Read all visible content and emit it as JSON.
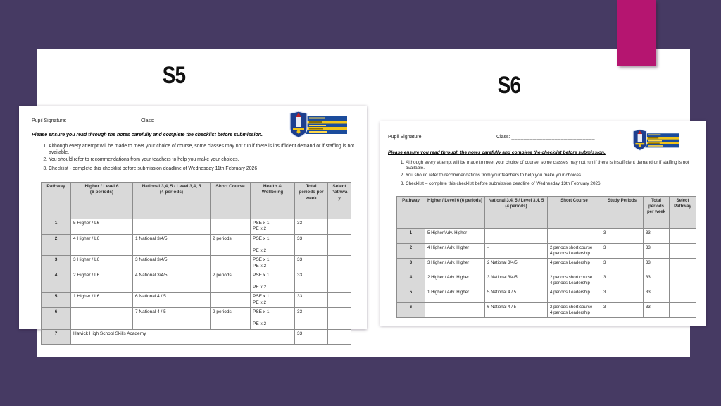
{
  "slide": {
    "background_color": "#463a63",
    "accent_color": "#b51570",
    "s5_title": "S5",
    "s6_title": "S6"
  },
  "s5_doc": {
    "pupil_signature_label": "Pupil Signature:",
    "class_label": "Class:",
    "class_line": "_____________________________",
    "instruction": "Please ensure you read through the notes carefully and complete the checklist before submission.",
    "notes": [
      "Although every attempt will be made to meet your choice of course, some classes may not run if there is insufficient demand or if staffing is not available.",
      "You should refer to recommendations from your teachers to help you make your choices.",
      "Checklist -  complete this checklist before submission deadline of Wednesday 11th February 2026"
    ],
    "table": {
      "headers": [
        [
          "Pathway"
        ],
        [
          "Higher / Level 6",
          "(6 periods)"
        ],
        [
          "National 3,4, 5 / Level 3,4, 5",
          "(4 periods)"
        ],
        [
          "Short Course"
        ],
        [
          "Health & Wellbeing"
        ],
        [
          "Total periods per week"
        ],
        [
          "Select Pathway"
        ]
      ],
      "rows": [
        [
          "1",
          "5 Higher / L6",
          "-",
          "",
          [
            "PSE x 1",
            "PE x 2"
          ],
          "33",
          ""
        ],
        [
          "2",
          "4 Higher / L6",
          "1 National 3/4/5",
          "2 periods",
          [
            "PSE x 1",
            "",
            "PE x 2"
          ],
          "33",
          ""
        ],
        [
          "3",
          "3 Higher / L6",
          "3 National 3/4/5",
          "",
          [
            "PSE x 1",
            "PE x 2"
          ],
          "33",
          ""
        ],
        [
          "4",
          "2 Higher / L6",
          "4 National 3/4/5",
          "2 periods",
          [
            "PSE x 1",
            "",
            "PE x 2"
          ],
          "33",
          ""
        ],
        [
          "5",
          "1 Higher / L6",
          "6 National 4 / 5",
          "",
          [
            "PSE x 1",
            "PE x 2"
          ],
          "33",
          ""
        ],
        [
          "6",
          "-",
          "7 National 4 / 5",
          "2 periods",
          [
            "PSE x 1",
            "",
            "PE x 2"
          ],
          "33",
          ""
        ],
        [
          "7",
          {
            "colspan": 4,
            "lines": [
              "Hawick High School Skills Academy"
            ]
          },
          "33",
          ""
        ]
      ]
    }
  },
  "s6_doc": {
    "pupil_signature_label": "Pupil Signature:",
    "class_label": "Class:",
    "class_line": "___________________________",
    "instruction": "Please ensure you read through the notes carefully and complete the checklist before submission.",
    "notes": [
      "Although every attempt will be made to meet your choice of course, some classes may not run if there is insufficient demand or if staffing is not available.",
      "You should refer to recommendations from your teachers to help you make your choices.",
      "Checklist – complete this checklist before submission deadline of Wednesday 13th February 2026"
    ],
    "table": {
      "headers": [
        [
          "Pathway"
        ],
        [
          "Higher / Level 6 (6 periods)"
        ],
        [
          "National 3,4, 5 / Level 3,4, 5",
          "(4 periods)"
        ],
        [
          "Short Course"
        ],
        [
          "Study Periods"
        ],
        [
          "Total periods per week"
        ],
        [
          "Select Pathway"
        ]
      ],
      "rows": [
        [
          "1",
          "5 Higher/Adv. Higher",
          "-",
          "-",
          "3",
          "33",
          ""
        ],
        [
          "2",
          "4 Higher / Adv. Higher",
          "-",
          [
            "2 periods short course",
            "4 periods Leadership"
          ],
          "3",
          "33",
          ""
        ],
        [
          "3",
          "3 Higher / Adv. Higher",
          "2 National 3/4/5",
          "4 periods Leadership",
          "3",
          "33",
          ""
        ],
        [
          "4",
          "2 Higher / Adv. Higher",
          "3 National 3/4/5",
          [
            "2 periods short course",
            "4 periods Leadership"
          ],
          "3",
          "33",
          ""
        ],
        [
          "5",
          "1 Higher / Adv. Higher",
          "5 National 4 / 5",
          "4 periods Leadership",
          "3",
          "33",
          ""
        ],
        [
          "6",
          "-",
          "6 National 4 / 5",
          [
            "2 periods short course",
            "4 periods Leadership"
          ],
          "3",
          "33",
          ""
        ]
      ]
    }
  }
}
